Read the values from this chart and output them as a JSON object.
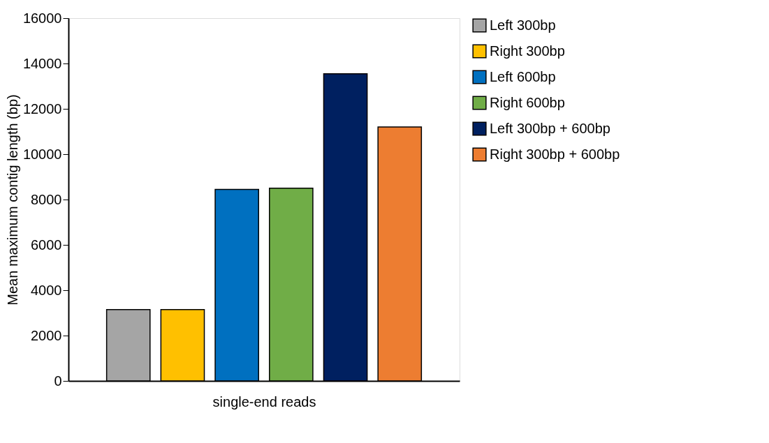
{
  "chart_data": {
    "type": "bar",
    "xlabel": "single-end reads",
    "ylabel": "Mean maximum contig length (bp)",
    "categories": [
      null
    ],
    "series": [
      {
        "name": "Left 300bp",
        "color": "#a5a5a5",
        "values": [
          3150
        ]
      },
      {
        "name": "Right 300bp",
        "color": "#ffc000",
        "values": [
          3150
        ]
      },
      {
        "name": "Left 600bp",
        "color": "#0070c0",
        "values": [
          8450
        ]
      },
      {
        "name": "Right 600bp",
        "color": "#70ad47",
        "values": [
          8500
        ]
      },
      {
        "name": "Left 300bp + 600bp",
        "color": "#002060",
        "values": [
          13550
        ]
      },
      {
        "name": "Right 300bp + 600bp",
        "color": "#ed7d31",
        "values": [
          11200
        ]
      }
    ],
    "ylim": [
      0,
      16000
    ],
    "yticks": [
      0,
      2000,
      4000,
      6000,
      8000,
      10000,
      12000,
      14000,
      16000
    ],
    "grid": false,
    "legend": "right",
    "tick_labels": "y"
  }
}
